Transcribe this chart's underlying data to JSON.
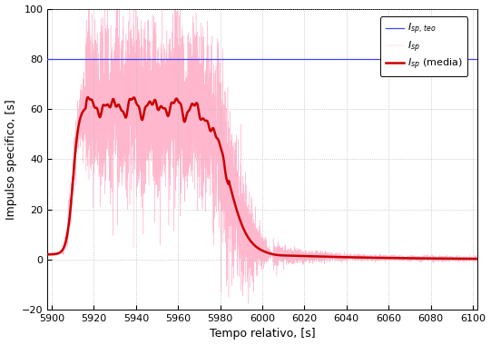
{
  "xlim": [
    5898,
    6102
  ],
  "ylim": [
    -20,
    100
  ],
  "xlabel": "Tempo relativo, [s]",
  "ylabel": "Impulso specifico, [s]",
  "xticks": [
    5900,
    5920,
    5940,
    5960,
    5980,
    6000,
    6020,
    6040,
    6060,
    6080,
    6100
  ],
  "yticks": [
    -20,
    0,
    20,
    40,
    60,
    80,
    100
  ],
  "color_theo": "#4444ff",
  "color_raw": "#ffb0c8",
  "color_mean": "#cc0000",
  "theo_value": 80.0,
  "background_color": "#ffffff",
  "grid_color": "#bbbbbb",
  "figsize": [
    5.41,
    3.8
  ],
  "dpi": 100
}
